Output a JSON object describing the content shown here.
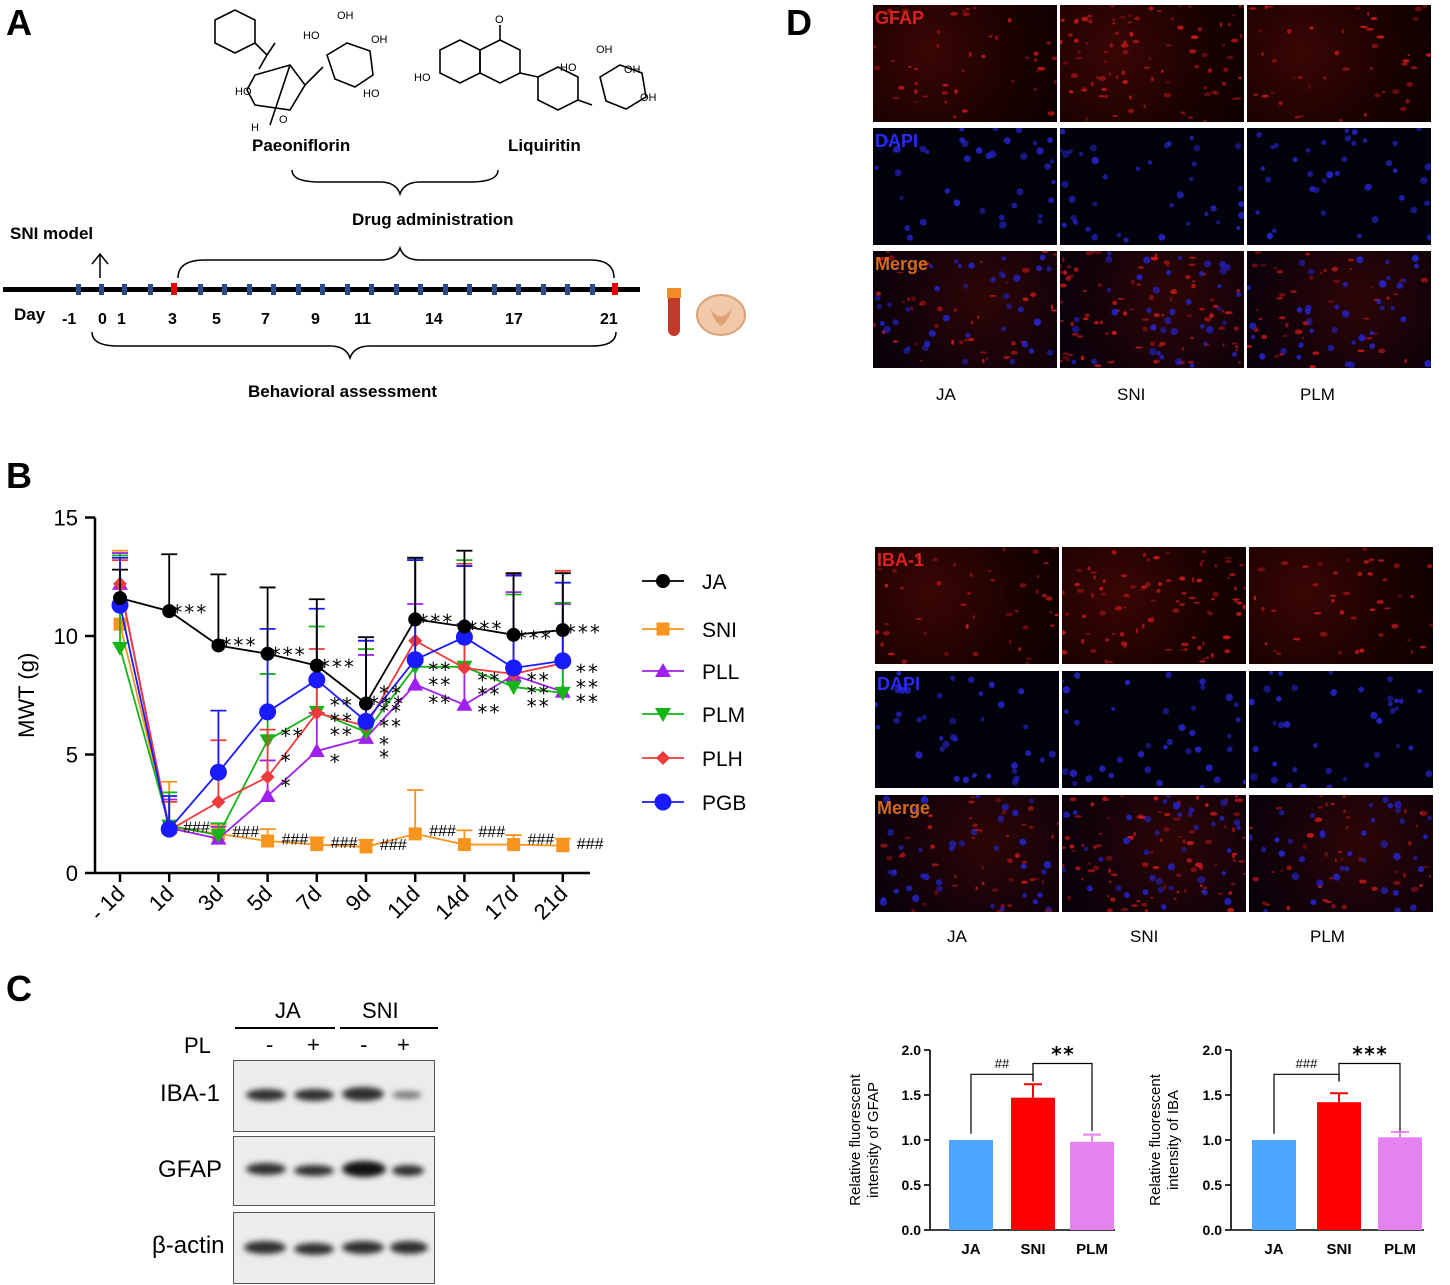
{
  "panels": {
    "a": "A",
    "b": "B",
    "c": "C",
    "d": "D"
  },
  "panel_a": {
    "compound1": "Paeoniflorin",
    "compound2": "Liquiritin",
    "drug_admin": "Drug administration",
    "sni_model": "SNI model",
    "day_label": "Day",
    "days": [
      "-1",
      "0",
      "1",
      "3",
      "5",
      "7",
      "9",
      "11",
      "14",
      "17",
      "21"
    ],
    "behavioral": "Behavioral assessment",
    "chem_labels": {
      "oh": "OH",
      "ho": "HO",
      "h": "H",
      "o": "O"
    }
  },
  "panel_b_chart": {
    "type": "line",
    "ylabel": "MWT (g)",
    "ylim": [
      0,
      15
    ],
    "yticks": [
      "0",
      "5",
      "10",
      "15"
    ],
    "categories": [
      "- 1d",
      "1d",
      "3d",
      "5d",
      "7d",
      "9d",
      "11d",
      "14d",
      "17d",
      "21d"
    ],
    "series": [
      {
        "name": "JA",
        "color": "#000000",
        "marker": "circle",
        "values": [
          11.6,
          11.05,
          9.6,
          9.25,
          8.75,
          7.15,
          10.7,
          10.4,
          10.05,
          10.25
        ],
        "err": [
          1.2,
          2.4,
          3.0,
          2.8,
          2.8,
          2.8,
          2.6,
          3.2,
          2.6,
          2.4
        ]
      },
      {
        "name": "SNI",
        "color": "#f7941d",
        "marker": "square",
        "values": [
          10.5,
          1.95,
          1.65,
          1.35,
          1.2,
          1.1,
          1.65,
          1.2,
          1.2,
          1.15
        ],
        "err": [
          3.1,
          1.9,
          0.4,
          0.5,
          0.3,
          0.3,
          1.85,
          0.6,
          0.4,
          0.3
        ]
      },
      {
        "name": "PLL",
        "color": "#a020f0",
        "marker": "triangle-up",
        "values": [
          12.2,
          1.9,
          1.45,
          3.25,
          5.15,
          5.7,
          7.95,
          7.1,
          8.35,
          7.65
        ],
        "err": [
          1.3,
          1.2,
          0.5,
          1.5,
          1.6,
          3.5,
          3.4,
          3.4,
          3.5,
          3.7
        ]
      },
      {
        "name": "PLM",
        "color": "#14b514",
        "marker": "triangle-down",
        "values": [
          9.5,
          2.0,
          1.6,
          5.6,
          6.8,
          5.95,
          8.7,
          8.7,
          7.85,
          7.6
        ],
        "err": [
          3.9,
          1.4,
          0.5,
          2.8,
          3.6,
          3.5,
          4.6,
          4.5,
          3.9,
          3.8
        ]
      },
      {
        "name": "PLH",
        "color": "#ee3a3a",
        "marker": "diamond",
        "values": [
          12.2,
          1.8,
          3.0,
          4.05,
          6.75,
          6.2,
          9.8,
          8.65,
          8.4,
          8.85
        ],
        "err": [
          1.0,
          1.2,
          2.6,
          2.0,
          2.7,
          3.6,
          3.4,
          4.4,
          4.2,
          3.9
        ]
      },
      {
        "name": "PGB",
        "color": "#1a1aff",
        "marker": "circle",
        "values": [
          11.3,
          1.85,
          4.25,
          6.8,
          8.15,
          6.4,
          9.0,
          9.95,
          8.65,
          8.95
        ],
        "err": [
          2.0,
          1.4,
          2.6,
          3.5,
          3.0,
          3.4,
          4.2,
          3.0,
          3.9,
          3.3
        ]
      }
    ],
    "annotations_star": [
      {
        "cat": 1,
        "y": 11.2,
        "text": "***"
      },
      {
        "cat": 2,
        "y": 9.8,
        "text": "***"
      },
      {
        "cat": 3,
        "y": 9.4,
        "text": "***"
      },
      {
        "cat": 4,
        "y": 8.9,
        "text": "***"
      },
      {
        "cat": 5,
        "y": 7.35,
        "text": "***"
      },
      {
        "cat": 6,
        "y": 10.8,
        "text": "***"
      },
      {
        "cat": 7,
        "y": 10.5,
        "text": "***"
      },
      {
        "cat": 8,
        "y": 10.1,
        "text": "***"
      },
      {
        "cat": 9,
        "y": 10.35,
        "text": "***"
      }
    ],
    "annotations_hash": [
      {
        "cat": 1,
        "y": 2.05,
        "text": "###"
      },
      {
        "cat": 2,
        "y": 1.85,
        "text": "###"
      },
      {
        "cat": 3,
        "y": 1.55,
        "text": "###"
      },
      {
        "cat": 4,
        "y": 1.4,
        "text": "###"
      },
      {
        "cat": 5,
        "y": 1.3,
        "text": "###"
      },
      {
        "cat": 6,
        "y": 1.9,
        "text": "###"
      },
      {
        "cat": 7,
        "y": 1.85,
        "text": "###"
      },
      {
        "cat": 8,
        "y": 1.55,
        "text": "###"
      },
      {
        "cat": 9,
        "y": 1.35,
        "text": "###"
      }
    ],
    "annotations_treat": [
      {
        "cat": 3,
        "y": 5.9,
        "text": "**"
      },
      {
        "cat": 3,
        "y": 4.85,
        "text": "*"
      },
      {
        "cat": 3,
        "y": 3.8,
        "text": "*"
      },
      {
        "cat": 4,
        "y": 7.2,
        "text": "**"
      },
      {
        "cat": 4,
        "y": 6.55,
        "text": "**"
      },
      {
        "cat": 4,
        "y": 5.95,
        "text": "**"
      },
      {
        "cat": 4,
        "y": 4.8,
        "text": "*"
      },
      {
        "cat": 5,
        "y": 7.7,
        "text": "**"
      },
      {
        "cat": 5,
        "y": 6.95,
        "text": "**"
      },
      {
        "cat": 5,
        "y": 6.3,
        "text": "**"
      },
      {
        "cat": 5,
        "y": 5.55,
        "text": "*"
      },
      {
        "cat": 5,
        "y": 5.0,
        "text": "*"
      },
      {
        "cat": 6,
        "y": 8.7,
        "text": "**"
      },
      {
        "cat": 6,
        "y": 8.05,
        "text": "**"
      },
      {
        "cat": 6,
        "y": 7.3,
        "text": "**"
      },
      {
        "cat": 7,
        "y": 8.25,
        "text": "**"
      },
      {
        "cat": 7,
        "y": 7.65,
        "text": "**"
      },
      {
        "cat": 7,
        "y": 6.9,
        "text": "**"
      },
      {
        "cat": 8,
        "y": 8.25,
        "text": "**"
      },
      {
        "cat": 8,
        "y": 7.7,
        "text": "**"
      },
      {
        "cat": 8,
        "y": 7.15,
        "text": "**"
      },
      {
        "cat": 9,
        "y": 8.6,
        "text": "**"
      },
      {
        "cat": 9,
        "y": 7.95,
        "text": "**"
      },
      {
        "cat": 9,
        "y": 7.35,
        "text": "**"
      }
    ]
  },
  "panel_c": {
    "groups": [
      "JA",
      "SNI"
    ],
    "pl_label": "PL",
    "pl_signs": [
      "-",
      "+",
      "-",
      "+"
    ],
    "rows": [
      "IBA-1",
      "GFAP",
      "β-actin"
    ]
  },
  "panel_d": {
    "gfap_rows": [
      "GFAP",
      "DAPI",
      "Merge"
    ],
    "iba_rows": [
      "IBA-1",
      "DAPI",
      "Merge"
    ],
    "cols": [
      "JA",
      "SNI",
      "PLM"
    ],
    "colors": {
      "red": "#e02020",
      "blue": "#2a2aff",
      "orange": "#d2691e"
    }
  },
  "bar_charts": [
    {
      "type": "bar",
      "categories": [
        "JA",
        "SNI",
        "PLM"
      ],
      "values": [
        1.0,
        1.47,
        0.98
      ],
      "err": [
        0,
        0.15,
        0.08
      ],
      "colors": [
        "#4da6ff",
        "#ff0000",
        "#e682f0"
      ],
      "ylabel": "Relative fluorescent intensity of GFAP",
      "ylim": [
        0,
        2.0
      ],
      "yticks": [
        "0.0",
        "0.5",
        "1.0",
        "1.5",
        "2.0"
      ],
      "sig1": "##",
      "sig2": "**"
    },
    {
      "type": "bar",
      "categories": [
        "JA",
        "SNI",
        "PLM"
      ],
      "values": [
        1.0,
        1.42,
        1.03
      ],
      "err": [
        0,
        0.1,
        0.06
      ],
      "colors": [
        "#4da6ff",
        "#ff0000",
        "#e682f0"
      ],
      "ylabel": "Relative fluorescent intensity of IBA",
      "ylim": [
        0,
        2.0
      ],
      "yticks": [
        "0.0",
        "0.5",
        "1.0",
        "1.5",
        "2.0"
      ],
      "sig1": "###",
      "sig2": "***"
    }
  ]
}
